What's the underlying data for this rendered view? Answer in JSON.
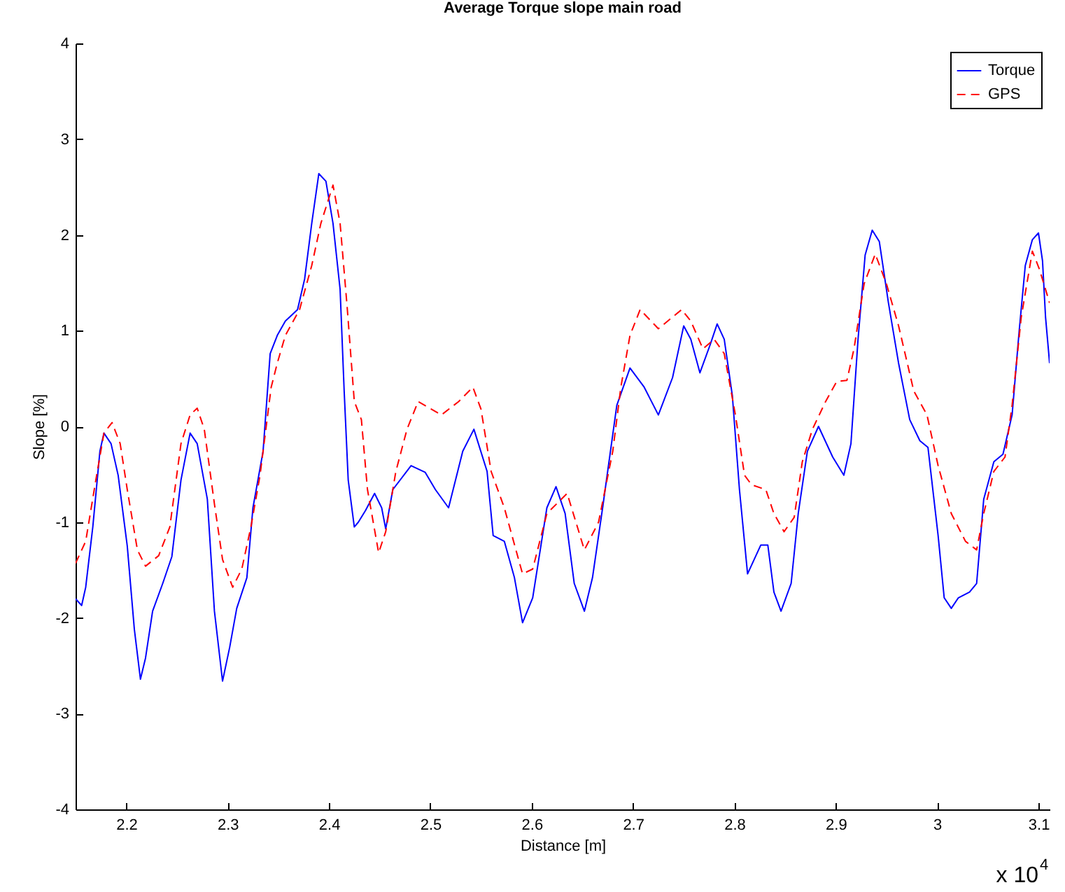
{
  "chart_data": {
    "type": "line",
    "title": "Average Torque slope main road",
    "xlabel": "Distance [m]",
    "ylabel": "Slope [%]",
    "annotations": [
      "x 10$^{4}$"
    ],
    "xlim": [
      2.15,
      3.111
    ],
    "xticks": [
      2.2,
      2.3,
      2.4,
      2.5,
      2.6,
      2.7,
      2.8,
      2.9,
      3,
      3.1
    ],
    "ylim": [
      -4,
      4
    ],
    "yticks": [
      -4,
      -3,
      -2,
      -1,
      0,
      1,
      2,
      3,
      4
    ],
    "grid": false,
    "legend": "top right",
    "series": [
      {
        "name": "Torque",
        "color": "#0000ff",
        "line_style": "solid",
        "x": [
          2.15,
          2.156,
          2.16,
          2.167,
          2.174,
          2.178,
          2.185,
          2.192,
          2.201,
          2.208,
          2.214,
          2.219,
          2.226,
          2.236,
          2.245,
          2.254,
          2.263,
          2.27,
          2.28,
          2.287,
          2.295,
          2.302,
          2.309,
          2.319,
          2.325,
          2.335,
          2.342,
          2.349,
          2.357,
          2.369,
          2.376,
          2.383,
          2.39,
          2.397,
          2.404,
          2.411,
          2.415,
          2.419,
          2.425,
          2.429,
          2.436,
          2.445,
          2.452,
          2.456,
          2.463,
          2.481,
          2.495,
          2.505,
          2.518,
          2.532,
          2.543,
          2.556,
          2.562,
          2.573,
          2.583,
          2.591,
          2.601,
          2.615,
          2.624,
          2.633,
          2.642,
          2.652,
          2.66,
          2.67,
          2.684,
          2.697,
          2.711,
          2.725,
          2.739,
          2.75,
          2.757,
          2.766,
          2.776,
          2.783,
          2.79,
          2.798,
          2.805,
          2.813,
          2.826,
          2.833,
          2.839,
          2.846,
          2.856,
          2.863,
          2.872,
          2.883,
          2.897,
          2.908,
          2.915,
          2.922,
          2.929,
          2.936,
          2.943,
          2.952,
          2.962,
          2.973,
          2.983,
          2.991,
          3.001,
          3.007,
          3.014,
          3.021,
          3.032,
          3.039,
          3.046,
          3.056,
          3.065,
          3.074,
          3.081,
          3.087,
          3.094,
          3.1,
          3.104,
          3.107,
          3.111
        ],
        "values": [
          -1.8,
          -1.87,
          -1.68,
          -1.05,
          -0.26,
          -0.07,
          -0.18,
          -0.51,
          -1.25,
          -2.12,
          -2.64,
          -2.42,
          -1.93,
          -1.64,
          -1.36,
          -0.56,
          -0.07,
          -0.18,
          -0.76,
          -1.93,
          -2.66,
          -2.31,
          -1.9,
          -1.58,
          -0.85,
          -0.26,
          0.76,
          0.95,
          1.1,
          1.22,
          1.54,
          2.12,
          2.64,
          2.56,
          2.12,
          1.43,
          0.37,
          -0.56,
          -1.05,
          -1.0,
          -0.88,
          -0.7,
          -0.85,
          -1.07,
          -0.66,
          -0.41,
          -0.48,
          -0.66,
          -0.85,
          -0.26,
          -0.03,
          -0.47,
          -1.14,
          -1.2,
          -1.58,
          -2.05,
          -1.79,
          -0.85,
          -0.63,
          -0.91,
          -1.64,
          -1.93,
          -1.58,
          -0.85,
          0.22,
          0.61,
          0.41,
          0.12,
          0.51,
          1.05,
          0.91,
          0.56,
          0.85,
          1.07,
          0.91,
          0.32,
          -0.66,
          -1.54,
          -1.24,
          -1.24,
          -1.73,
          -1.93,
          -1.64,
          -0.91,
          -0.26,
          0.0,
          -0.32,
          -0.51,
          -0.18,
          0.91,
          1.79,
          2.05,
          1.93,
          1.29,
          0.66,
          0.07,
          -0.15,
          -0.22,
          -1.14,
          -1.79,
          -1.9,
          -1.79,
          -1.73,
          -1.64,
          -0.76,
          -0.37,
          -0.29,
          0.12,
          1.0,
          1.68,
          1.95,
          2.02,
          1.73,
          1.14,
          0.66
        ]
      },
      {
        "name": "GPS",
        "color": "#ff0000",
        "line_style": "dashed",
        "x": [
          2.15,
          2.16,
          2.17,
          2.178,
          2.186,
          2.194,
          2.201,
          2.211,
          2.219,
          2.232,
          2.243,
          2.254,
          2.263,
          2.27,
          2.277,
          2.287,
          2.295,
          2.305,
          2.314,
          2.323,
          2.332,
          2.343,
          2.349,
          2.357,
          2.371,
          2.383,
          2.392,
          2.404,
          2.411,
          2.418,
          2.425,
          2.432,
          2.438,
          2.449,
          2.456,
          2.466,
          2.477,
          2.488,
          2.511,
          2.528,
          2.542,
          2.55,
          2.56,
          2.573,
          2.591,
          2.601,
          2.615,
          2.635,
          2.652,
          2.666,
          2.68,
          2.688,
          2.697,
          2.707,
          2.725,
          2.748,
          2.757,
          2.769,
          2.78,
          2.79,
          2.801,
          2.81,
          2.817,
          2.831,
          2.839,
          2.849,
          2.859,
          2.867,
          2.877,
          2.89,
          2.901,
          2.911,
          2.918,
          2.928,
          2.939,
          2.95,
          2.962,
          2.977,
          2.99,
          3.001,
          3.014,
          3.028,
          3.039,
          3.046,
          3.056,
          3.067,
          3.074,
          3.083,
          3.094,
          3.101,
          3.111
        ],
        "values": [
          -1.43,
          -1.2,
          -0.56,
          -0.07,
          0.04,
          -0.18,
          -0.66,
          -1.29,
          -1.46,
          -1.35,
          -1.05,
          -0.18,
          0.12,
          0.19,
          -0.03,
          -0.81,
          -1.39,
          -1.68,
          -1.49,
          -1.05,
          -0.51,
          0.41,
          0.66,
          0.95,
          1.22,
          1.68,
          2.12,
          2.52,
          2.12,
          1.24,
          0.26,
          0.07,
          -0.66,
          -1.32,
          -1.1,
          -0.47,
          -0.03,
          0.26,
          0.12,
          0.26,
          0.41,
          0.18,
          -0.47,
          -0.85,
          -1.54,
          -1.49,
          -0.91,
          -0.7,
          -1.29,
          -1.0,
          -0.26,
          0.41,
          0.95,
          1.22,
          1.02,
          1.22,
          1.1,
          0.81,
          0.91,
          0.76,
          0.12,
          -0.51,
          -0.61,
          -0.66,
          -0.91,
          -1.1,
          -0.95,
          -0.37,
          -0.03,
          0.26,
          0.47,
          0.48,
          0.81,
          1.49,
          1.8,
          1.49,
          1.05,
          0.37,
          0.12,
          -0.41,
          -0.91,
          -1.2,
          -1.29,
          -0.91,
          -0.47,
          -0.32,
          0.22,
          1.14,
          1.83,
          1.64,
          1.29
        ]
      }
    ]
  }
}
